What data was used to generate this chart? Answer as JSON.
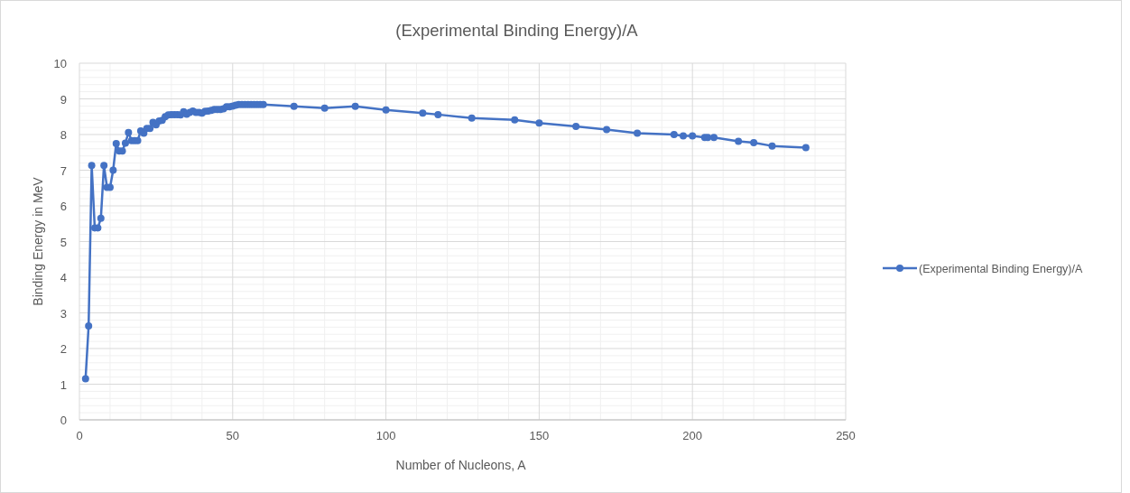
{
  "chart_data": {
    "type": "line",
    "title": "(Experimental Binding Energy)/A",
    "xlabel": "Number of Nucleons, A",
    "ylabel": "Binding Energy in MeV",
    "xlim": [
      0,
      250
    ],
    "xticks": [
      0,
      50,
      100,
      150,
      200,
      250
    ],
    "ylim": [
      0,
      10
    ],
    "yticks": [
      0,
      1,
      2,
      3,
      4,
      5,
      6,
      7,
      8,
      9,
      10
    ],
    "grid": true,
    "legend": "right",
    "marker": "circle",
    "line_style": "solid",
    "series": [
      {
        "name": "(Experimental Binding Energy)/A",
        "color": "#4472c4",
        "x": [
          2,
          3,
          4,
          5,
          6,
          7,
          8,
          9,
          10,
          11,
          12,
          13,
          14,
          15,
          16,
          17,
          18,
          19,
          20,
          21,
          22,
          23,
          24,
          25,
          26,
          27,
          28,
          29,
          30,
          31,
          32,
          33,
          34,
          35,
          36,
          37,
          38,
          39,
          40,
          41,
          42,
          43,
          44,
          45,
          46,
          47,
          48,
          49,
          50,
          51,
          52,
          53,
          54,
          55,
          56,
          57,
          58,
          59,
          60,
          70,
          80,
          90,
          100,
          112,
          117,
          128,
          142,
          150,
          162,
          172,
          182,
          194,
          197,
          200,
          204,
          205,
          207,
          215,
          220,
          226,
          237
        ],
        "values": [
          1.15,
          2.63,
          7.13,
          5.38,
          5.38,
          5.65,
          7.13,
          6.52,
          6.52,
          7.0,
          7.75,
          7.54,
          7.54,
          7.76,
          8.06,
          7.83,
          7.83,
          7.83,
          8.1,
          8.04,
          8.17,
          8.17,
          8.34,
          8.27,
          8.38,
          8.4,
          8.5,
          8.55,
          8.56,
          8.56,
          8.56,
          8.55,
          8.64,
          8.57,
          8.62,
          8.66,
          8.62,
          8.62,
          8.6,
          8.65,
          8.66,
          8.68,
          8.7,
          8.7,
          8.7,
          8.72,
          8.78,
          8.78,
          8.8,
          8.82,
          8.84,
          8.84,
          8.84,
          8.84,
          8.84,
          8.84,
          8.84,
          8.84,
          8.84,
          8.79,
          8.74,
          8.79,
          8.69,
          8.6,
          8.56,
          8.46,
          8.41,
          8.32,
          8.23,
          8.14,
          8.04,
          8.0,
          7.96,
          7.96,
          7.92,
          7.92,
          7.92,
          7.81,
          7.77,
          7.68,
          7.63
        ]
      }
    ]
  }
}
